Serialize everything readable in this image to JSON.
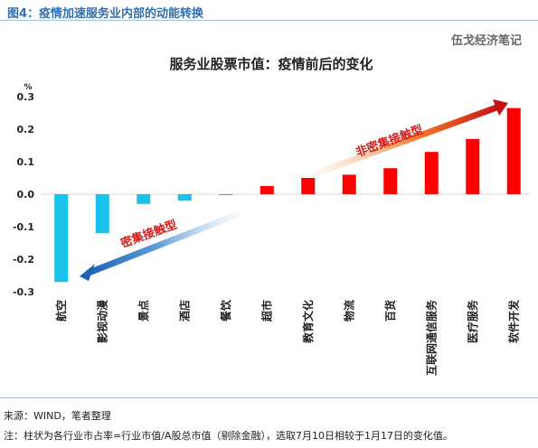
{
  "figure_title": "图4：疫情加速服务业内部的动能转换",
  "watermark": "伍戈经济笔记",
  "source": "来源：WIND，笔者整理",
  "note": "注：柱状为各行业市占率=行业市值/A股总市值（剔除金融），选取7月10日相较于1月17日的变化值。",
  "chart_data": {
    "type": "bar",
    "title": "服务业股票市值：疫情前后的变化",
    "ylabel": "%",
    "xlabel": "",
    "ylim": [
      -0.3,
      0.3
    ],
    "yticks": [
      -0.3,
      -0.2,
      -0.1,
      0.0,
      0.1,
      0.2,
      0.3
    ],
    "categories": [
      "航空",
      "影视动漫",
      "景点",
      "酒店",
      "餐饮",
      "超市",
      "教育文化",
      "物流",
      "百货",
      "互联网通信服务",
      "医疗服务",
      "软件开发"
    ],
    "values": [
      -0.27,
      -0.12,
      -0.03,
      -0.02,
      -0.003,
      0.025,
      0.05,
      0.06,
      0.08,
      0.13,
      0.17,
      0.265
    ],
    "colors": {
      "positive": "#ff0000",
      "negative": "#19c2ea"
    },
    "annotations": [
      {
        "text": "非密集接触型",
        "color": "#d81b1b"
      },
      {
        "text": "密集接触型",
        "color": "#d81b1b"
      }
    ]
  }
}
